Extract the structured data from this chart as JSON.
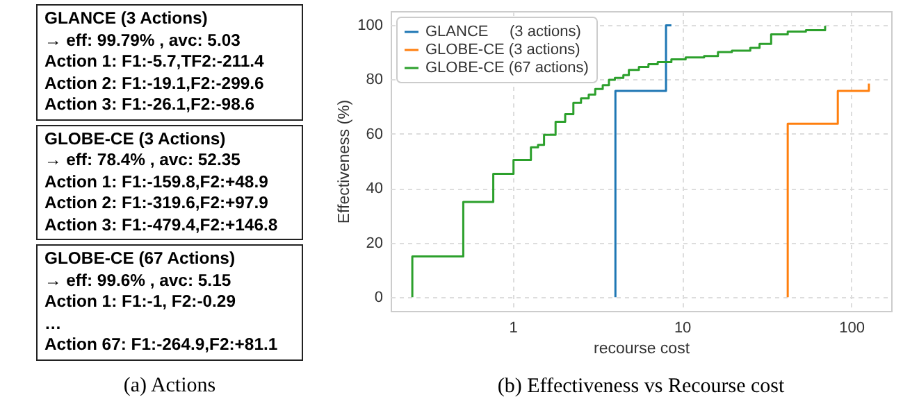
{
  "chart_data": [
    {
      "type": "other",
      "title": "(a) Actions",
      "annotations": [
        "GLANCE (3 Actions)\n→ eff: 99.79% , avc: 5.03\nAction 1: F1:-5.7,TF2:-211.4\nAction 2: F1:-19.1,F2:-299.6\nAction 3: F1:-26.1,F2:-98.6",
        "GLOBE-CE (3 Actions)\n→ eff: 78.4% , avc: 52.35\nAction 1: F1:-159.8,F2:+48.9\nAction 2: F1:-319.6,F2:+97.9\nAction 3: F1:-479.4,F2:+146.8",
        "GLOBE-CE (67 Actions)\n→ eff: 99.6% , avc: 5.15\nAction 1: F1:-1, F2:-0.29\n…\nAction 67: F1:-264.9,F2:+81.1"
      ]
    },
    {
      "type": "step",
      "title": "(b) Effectiveness vs Recourse cost",
      "xlabel": "recourse cost",
      "ylabel": "Effectiveness (%)",
      "log": "x",
      "grid": true,
      "legend": "top left",
      "xlim": [
        0.19,
        172
      ],
      "xticks": [
        1,
        10,
        100
      ],
      "ylim": [
        -5,
        105
      ],
      "yticks": [
        0,
        20,
        40,
        60,
        80,
        100
      ],
      "series": [
        {
          "name": "GLANCE     (3 actions)",
          "color": "#1f77b4",
          "x": [
            4.04,
            4.04,
            8.04,
            8.65
          ],
          "values": [
            0,
            75.7,
            99.8,
            99.8
          ]
        },
        {
          "name": "GLOBE-CE (3 actions)",
          "color": "#ff7f0e",
          "x": [
            42.1,
            42.1,
            83.2,
            127
          ],
          "values": [
            0,
            63.7,
            75.7,
            78.4
          ]
        },
        {
          "name": "GLOBE-CE (67 actions)",
          "color": "#2ca02c",
          "x": [
            0.255,
            0.255,
            0.51,
            0.767,
            1.01,
            1.28,
            1.41,
            1.53,
            1.79,
            2.04,
            2.28,
            2.53,
            2.81,
            3.07,
            3.4,
            3.7,
            4.01,
            4.5,
            4.85,
            5.56,
            6.33,
            7.18,
            8.65,
            10.5,
            13.5,
            16.3,
            19.7,
            25.3,
            28.7,
            33.6,
            42.1,
            53.9,
            70
          ],
          "values": [
            0,
            15,
            35,
            45.3,
            50.4,
            55,
            55.9,
            59.6,
            64.4,
            67.2,
            71.3,
            73,
            74.4,
            76.4,
            77.8,
            79.8,
            80.5,
            81.5,
            83.4,
            84.5,
            85.5,
            86.3,
            87.3,
            88,
            88.5,
            90,
            90.5,
            91.5,
            93,
            96.5,
            97.5,
            98,
            99.6
          ]
        }
      ]
    }
  ]
}
